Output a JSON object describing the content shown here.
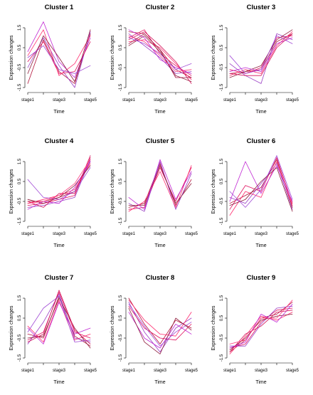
{
  "chart_data": [
    {
      "type": "line",
      "title": "Cluster 1",
      "xlabel": "Time",
      "ylabel": "Expression changes",
      "x_ticks": [
        "stage1",
        "stage3",
        "stage5"
      ],
      "x": [
        1,
        2,
        3,
        4,
        5
      ],
      "ylim": [
        -1.5,
        1.5
      ],
      "y_ticks": [
        "-1.5",
        "-0.5",
        "0.5",
        "1.5"
      ],
      "series": [
        {
          "values": [
            -1.3,
            0.9,
            -0.7,
            -1.3,
            1.2
          ],
          "color": "#b2123a"
        },
        {
          "values": [
            -0.5,
            1.0,
            -0.4,
            -1.5,
            1.3
          ],
          "color": "#9a3fc4"
        },
        {
          "values": [
            0.3,
            1.8,
            -0.2,
            -1.0,
            1.0
          ],
          "color": "#c026d3"
        },
        {
          "values": [
            -0.2,
            0.8,
            -0.8,
            -0.7,
            0.8
          ],
          "color": "#e0115f"
        },
        {
          "values": [
            0.1,
            1.4,
            -0.9,
            -0.3,
            1.1
          ],
          "color": "#ff2d6f"
        },
        {
          "values": [
            -0.8,
            1.1,
            0.0,
            -1.2,
            1.4
          ],
          "color": "#8e1c3c"
        },
        {
          "values": [
            0.0,
            0.6,
            -0.6,
            -0.8,
            -0.4
          ],
          "color": "#a24cd6"
        }
      ]
    },
    {
      "type": "line",
      "title": "Cluster 2",
      "xlabel": "Time",
      "ylabel": "Expression changes",
      "x_ticks": [
        "stage1",
        "stage3",
        "stage5"
      ],
      "x": [
        1,
        2,
        3,
        4,
        5
      ],
      "ylim": [
        -1.5,
        1.5
      ],
      "y_ticks": [
        "-1.5",
        "-0.5",
        "0.5",
        "1.5"
      ],
      "series": [
        {
          "values": [
            1.3,
            1.2,
            0.4,
            -0.6,
            -1.0
          ],
          "color": "#b2123a"
        },
        {
          "values": [
            1.0,
            1.4,
            0.2,
            -0.4,
            -0.9
          ],
          "color": "#e0115f"
        },
        {
          "values": [
            0.8,
            0.9,
            0.5,
            -0.3,
            -1.1
          ],
          "color": "#ff2d6f"
        },
        {
          "values": [
            1.2,
            0.6,
            0.0,
            -0.8,
            -0.7
          ],
          "color": "#9a3fc4"
        },
        {
          "values": [
            0.6,
            1.1,
            0.3,
            -0.9,
            -1.2
          ],
          "color": "#8e1c3c"
        },
        {
          "values": [
            1.4,
            1.0,
            -0.1,
            -0.5,
            -0.8
          ],
          "color": "#c026d3"
        },
        {
          "values": [
            0.9,
            1.3,
            0.6,
            -0.2,
            -1.3
          ],
          "color": "#d4145a"
        },
        {
          "values": [
            1.1,
            0.8,
            0.1,
            -0.7,
            -0.6
          ],
          "color": "#ff3d7f"
        },
        {
          "values": [
            0.7,
            1.2,
            0.4,
            -1.0,
            -1.0
          ],
          "color": "#a01040"
        },
        {
          "values": [
            1.0,
            0.7,
            0.2,
            -0.6,
            -0.3
          ],
          "color": "#a24cd6"
        }
      ]
    },
    {
      "type": "line",
      "title": "Cluster 3",
      "xlabel": "Time",
      "ylabel": "Expression changes",
      "x_ticks": [
        "stage1",
        "stage3",
        "stage5"
      ],
      "x": [
        1,
        2,
        3,
        4,
        5
      ],
      "ylim": [
        -1.5,
        1.5
      ],
      "y_ticks": [
        "-1.5",
        "-0.5",
        "0.5",
        "1.5"
      ],
      "series": [
        {
          "values": [
            -0.8,
            -0.7,
            -0.6,
            0.8,
            1.2
          ],
          "color": "#b2123a"
        },
        {
          "values": [
            -0.6,
            -0.8,
            -0.5,
            1.0,
            1.1
          ],
          "color": "#e0115f"
        },
        {
          "values": [
            -0.9,
            -0.6,
            -0.8,
            0.6,
            1.3
          ],
          "color": "#ff2d6f"
        },
        {
          "values": [
            -0.3,
            -0.9,
            -1.3,
            1.2,
            0.9
          ],
          "color": "#9a3fc4"
        },
        {
          "values": [
            -1.0,
            -0.7,
            -0.4,
            0.9,
            1.4
          ],
          "color": "#8e1c3c"
        },
        {
          "values": [
            -0.7,
            -0.5,
            -0.7,
            0.7,
            1.0
          ],
          "color": "#c026d3"
        },
        {
          "values": [
            0.1,
            -0.8,
            -0.6,
            1.1,
            0.7
          ],
          "color": "#a24cd6"
        },
        {
          "values": [
            -0.8,
            -0.9,
            -0.9,
            0.5,
            1.2
          ],
          "color": "#d4145a"
        }
      ]
    },
    {
      "type": "line",
      "title": "Cluster 4",
      "xlabel": "Time",
      "ylabel": "Expression changes",
      "x_ticks": [
        "stage1",
        "stage3",
        "stage5"
      ],
      "x": [
        1,
        2,
        3,
        4,
        5
      ],
      "ylim": [
        -1.5,
        1.5
      ],
      "y_ticks": [
        "-1.5",
        "-0.5",
        "0.5",
        "1.5"
      ],
      "series": [
        {
          "values": [
            -0.5,
            -0.5,
            -0.3,
            0.0,
            1.5
          ],
          "color": "#b2123a"
        },
        {
          "values": [
            -0.7,
            -0.6,
            -0.4,
            -0.2,
            1.7
          ],
          "color": "#e0115f"
        },
        {
          "values": [
            -0.6,
            -0.4,
            -0.2,
            0.1,
            1.4
          ],
          "color": "#ff2d6f"
        },
        {
          "values": [
            -0.8,
            -0.7,
            -0.5,
            -0.3,
            1.6
          ],
          "color": "#9a3fc4"
        },
        {
          "values": [
            -0.4,
            -0.6,
            -0.3,
            0.3,
            1.3
          ],
          "color": "#8e1c3c"
        },
        {
          "values": [
            -0.9,
            -0.5,
            -0.6,
            0.2,
            1.5
          ],
          "color": "#c026d3"
        },
        {
          "values": [
            -0.5,
            -0.8,
            -0.1,
            -0.1,
            1.8
          ],
          "color": "#d4145a"
        },
        {
          "values": [
            0.6,
            -0.3,
            -0.4,
            0.0,
            1.2
          ],
          "color": "#a24cd6"
        },
        {
          "values": [
            -0.6,
            -0.5,
            -0.2,
            0.4,
            1.6
          ],
          "color": "#ff3d7f"
        }
      ]
    },
    {
      "type": "line",
      "title": "Cluster 5",
      "xlabel": "Time",
      "ylabel": "Expression changes",
      "x_ticks": [
        "stage1",
        "stage3",
        "stage5"
      ],
      "x": [
        1,
        2,
        3,
        4,
        5
      ],
      "ylim": [
        -1.5,
        1.5
      ],
      "y_ticks": [
        "-1.5",
        "-0.5",
        "0.5",
        "1.5"
      ],
      "series": [
        {
          "values": [
            -0.8,
            -0.6,
            1.4,
            -0.7,
            0.6
          ],
          "color": "#b2123a"
        },
        {
          "values": [
            -0.9,
            -0.8,
            1.2,
            -0.5,
            1.2
          ],
          "color": "#e0115f"
        },
        {
          "values": [
            -0.6,
            -1.0,
            1.5,
            -0.9,
            0.9
          ],
          "color": "#9a3fc4"
        },
        {
          "values": [
            -1.0,
            -0.5,
            1.0,
            -0.8,
            1.3
          ],
          "color": "#ff2d6f"
        },
        {
          "values": [
            -0.7,
            -0.7,
            1.3,
            -0.6,
            0.4
          ],
          "color": "#8e1c3c"
        },
        {
          "values": [
            -0.3,
            -0.9,
            1.6,
            -0.4,
            1.0
          ],
          "color": "#c026d3"
        }
      ]
    },
    {
      "type": "line",
      "title": "Cluster 6",
      "xlabel": "Time",
      "ylabel": "Expression changes",
      "x_ticks": [
        "stage1",
        "stage3",
        "stage5"
      ],
      "x": [
        1,
        2,
        3,
        4,
        5
      ],
      "ylim": [
        -1.5,
        1.5
      ],
      "y_ticks": [
        "-1.5",
        "-0.5",
        "0.5",
        "1.5"
      ],
      "series": [
        {
          "values": [
            -0.6,
            -0.2,
            0.2,
            1.6,
            -0.8
          ],
          "color": "#b2123a"
        },
        {
          "values": [
            -0.9,
            0.3,
            0.0,
            1.7,
            -0.6
          ],
          "color": "#e0115f"
        },
        {
          "values": [
            -0.3,
            -0.6,
            0.4,
            1.4,
            -0.9
          ],
          "color": "#9a3fc4"
        },
        {
          "values": [
            -1.2,
            0.0,
            -0.3,
            1.5,
            -0.7
          ],
          "color": "#ff2d6f"
        },
        {
          "values": [
            -0.5,
            1.5,
            -0.1,
            1.3,
            -0.5
          ],
          "color": "#c026d3"
        },
        {
          "values": [
            -0.7,
            -0.4,
            0.5,
            1.2,
            -1.0
          ],
          "color": "#8e1c3c"
        },
        {
          "values": [
            0.0,
            -0.8,
            0.1,
            1.8,
            -0.4
          ],
          "color": "#a24cd6"
        }
      ]
    },
    {
      "type": "line",
      "title": "Cluster 7",
      "xlabel": "Time",
      "ylabel": "Expression changes",
      "x_ticks": [
        "stage1",
        "stage3",
        "stage5"
      ],
      "x": [
        1,
        2,
        3,
        4,
        5
      ],
      "ylim": [
        -1.5,
        1.5
      ],
      "y_ticks": [
        "-1.5",
        "-0.5",
        "0.5",
        "1.5"
      ],
      "series": [
        {
          "values": [
            -0.3,
            -0.5,
            1.6,
            -0.4,
            -0.9
          ],
          "color": "#b2123a"
        },
        {
          "values": [
            -0.6,
            -0.2,
            1.8,
            -0.2,
            -0.5
          ],
          "color": "#e0115f"
        },
        {
          "values": [
            0.1,
            -0.7,
            1.4,
            -0.6,
            -0.3
          ],
          "color": "#ff2d6f"
        },
        {
          "values": [
            -0.8,
            0.3,
            1.7,
            -0.5,
            -0.7
          ],
          "color": "#9a3fc4"
        },
        {
          "values": [
            -0.5,
            -0.4,
            1.5,
            0.0,
            -1.0
          ],
          "color": "#8e1c3c"
        },
        {
          "values": [
            0.0,
            -0.8,
            1.3,
            -0.3,
            0.0
          ],
          "color": "#c026d3"
        },
        {
          "values": [
            -0.2,
            1.0,
            1.6,
            -0.7,
            -0.6
          ],
          "color": "#a24cd6"
        },
        {
          "values": [
            -0.7,
            -0.3,
            1.9,
            -0.1,
            -0.8
          ],
          "color": "#d4145a"
        }
      ]
    },
    {
      "type": "line",
      "title": "Cluster 8",
      "xlabel": "Time",
      "ylabel": "Expression changes",
      "x_ticks": [
        "stage1",
        "stage3",
        "stage5"
      ],
      "x": [
        1,
        2,
        3,
        4,
        5
      ],
      "ylim": [
        -1.5,
        1.5
      ],
      "y_ticks": [
        "-1.5",
        "-0.5",
        "0.5",
        "1.5"
      ],
      "series": [
        {
          "values": [
            1.5,
            0.2,
            -0.8,
            0.4,
            0.0
          ],
          "color": "#b2123a"
        },
        {
          "values": [
            1.3,
            -0.2,
            -1.2,
            0.0,
            0.5
          ],
          "color": "#9a3fc4"
        },
        {
          "values": [
            1.1,
            0.0,
            -0.5,
            -0.6,
            0.2
          ],
          "color": "#e0115f"
        },
        {
          "values": [
            0.8,
            -0.5,
            -1.0,
            0.2,
            -0.3
          ],
          "color": "#c026d3"
        },
        {
          "values": [
            1.4,
            0.4,
            -0.3,
            -0.4,
            0.8
          ],
          "color": "#ff2d6f"
        },
        {
          "values": [
            1.0,
            -0.7,
            -1.3,
            0.5,
            -0.1
          ],
          "color": "#8e1c3c"
        },
        {
          "values": [
            1.2,
            0.1,
            -0.9,
            -0.2,
            0.3
          ],
          "color": "#a24cd6"
        }
      ]
    },
    {
      "type": "line",
      "title": "Cluster 9",
      "xlabel": "Time",
      "ylabel": "Expression changes",
      "x_ticks": [
        "stage1",
        "stage3",
        "stage5"
      ],
      "x": [
        1,
        2,
        3,
        4,
        5
      ],
      "ylim": [
        -1.5,
        1.5
      ],
      "y_ticks": [
        "-1.5",
        "-0.5",
        "0.5",
        "1.5"
      ],
      "series": [
        {
          "values": [
            -1.2,
            -0.6,
            0.5,
            0.7,
            1.3
          ],
          "color": "#b2123a"
        },
        {
          "values": [
            -1.0,
            -0.8,
            0.3,
            0.9,
            1.0
          ],
          "color": "#e0115f"
        },
        {
          "values": [
            -1.3,
            -0.4,
            0.6,
            0.4,
            0.8
          ],
          "color": "#ff2d6f"
        },
        {
          "values": [
            -0.9,
            -0.9,
            0.2,
            1.0,
            1.1
          ],
          "color": "#9a3fc4"
        },
        {
          "values": [
            -1.1,
            -0.5,
            0.4,
            0.6,
            0.7
          ],
          "color": "#8e1c3c"
        },
        {
          "values": [
            -1.0,
            -0.7,
            0.7,
            0.3,
            1.2
          ],
          "color": "#c026d3"
        },
        {
          "values": [
            -1.2,
            -0.3,
            0.1,
            0.8,
            0.9
          ],
          "color": "#d4145a"
        },
        {
          "values": [
            -0.8,
            -0.6,
            0.5,
            0.5,
            1.4
          ],
          "color": "#ff3d7f"
        }
      ]
    }
  ]
}
